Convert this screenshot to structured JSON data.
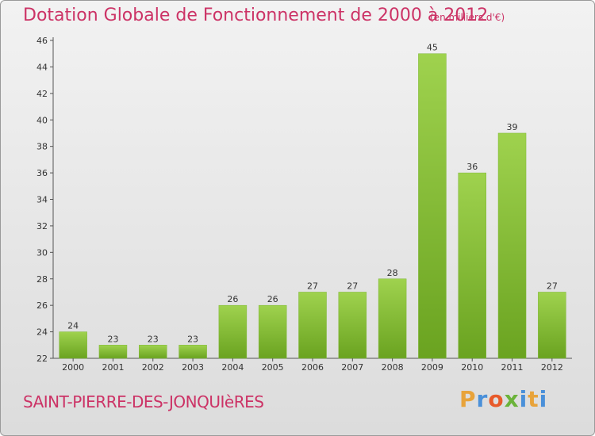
{
  "chart_data": {
    "type": "bar",
    "title": "Dotation Globale de Fonctionnement de 2000 à 2012",
    "subtitle": "(en milliers d'€)",
    "categories": [
      "2000",
      "2001",
      "2002",
      "2003",
      "2004",
      "2005",
      "2006",
      "2007",
      "2008",
      "2009",
      "2010",
      "2011",
      "2012"
    ],
    "values": [
      24,
      23,
      23,
      23,
      26,
      26,
      27,
      27,
      28,
      45,
      36,
      39,
      27
    ],
    "ylim": [
      22,
      46
    ],
    "yticks": [
      22,
      24,
      26,
      28,
      30,
      32,
      34,
      36,
      38,
      40,
      42,
      44,
      46
    ],
    "grid": false,
    "bar_color": "#8bc43f"
  },
  "footer": {
    "commune": "SAINT-PIERRE-DES-JONQUIèRES",
    "logo_letters": [
      "P",
      "r",
      "o",
      "x",
      "i",
      "t",
      "i"
    ],
    "logo_colors": [
      "#e8a33a",
      "#4a90d9",
      "#e85a2a",
      "#6bb33a",
      "#4a90d9",
      "#e8a33a",
      "#4a90d9"
    ]
  },
  "colors": {
    "title": "#cc3366",
    "axis": "#555555"
  }
}
